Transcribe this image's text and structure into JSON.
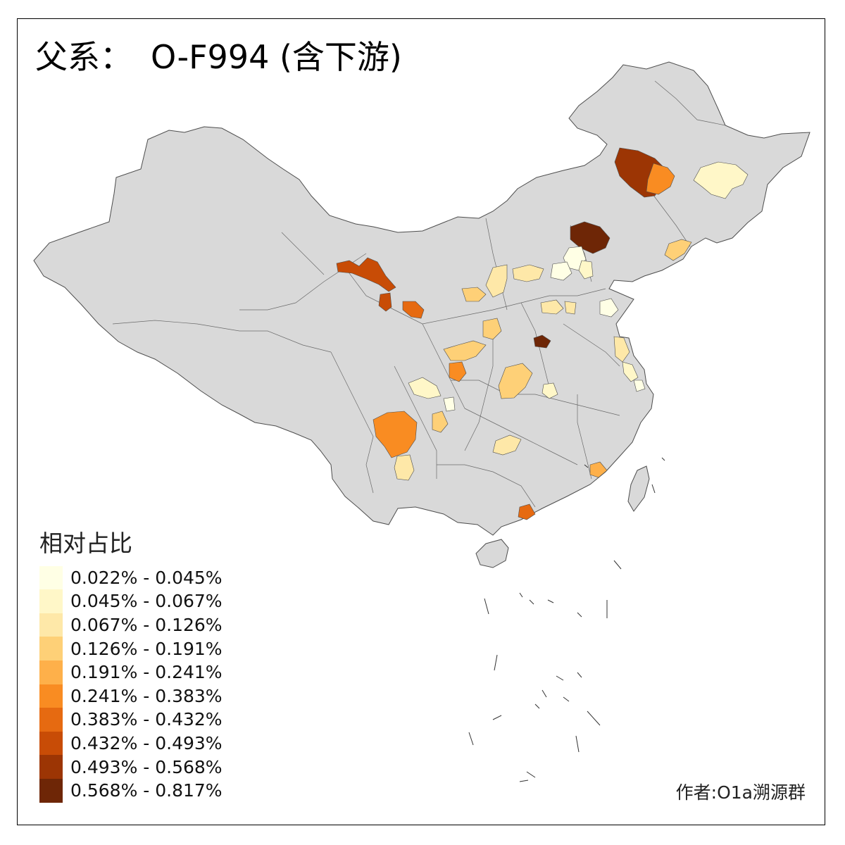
{
  "title": {
    "prefix": "父系：",
    "main": "O-F994 (含下游)"
  },
  "legend": {
    "title": "相对占比",
    "items": [
      {
        "label": "0.022% - 0.045%",
        "color": "#ffffe5"
      },
      {
        "label": "0.045% - 0.067%",
        "color": "#fff7c8"
      },
      {
        "label": "0.067% - 0.126%",
        "color": "#fee8a8"
      },
      {
        "label": "0.126% - 0.191%",
        "color": "#fed077"
      },
      {
        "label": "0.191% - 0.241%",
        "color": "#feb04a"
      },
      {
        "label": "0.241% - 0.383%",
        "color": "#f98c22"
      },
      {
        "label": "0.383% - 0.432%",
        "color": "#e66a11"
      },
      {
        "label": "0.432% - 0.493%",
        "color": "#c84c06"
      },
      {
        "label": "0.493% - 0.568%",
        "color": "#9c3504"
      },
      {
        "label": "0.568% - 0.817%",
        "color": "#6e2606"
      }
    ]
  },
  "author": "作者:O1a溯源群",
  "map": {
    "base_color": "#d9d9d9",
    "border_color": "#4d4d4d"
  }
}
